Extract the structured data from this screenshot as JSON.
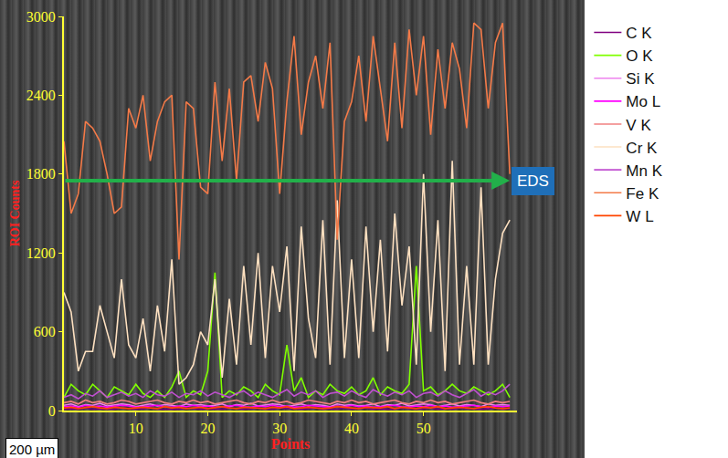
{
  "chart_data": {
    "type": "line",
    "x_label": "Points",
    "y_label": "ROI Counts",
    "x": [
      0,
      1,
      2,
      3,
      4,
      5,
      6,
      7,
      8,
      9,
      10,
      11,
      12,
      13,
      14,
      15,
      16,
      17,
      18,
      19,
      20,
      21,
      22,
      23,
      24,
      25,
      26,
      27,
      28,
      29,
      30,
      31,
      32,
      33,
      34,
      35,
      36,
      37,
      38,
      39,
      40,
      41,
      42,
      43,
      44,
      45,
      46,
      47,
      48,
      49,
      50,
      51,
      52,
      53,
      54,
      55,
      56,
      57,
      58,
      59,
      60,
      61,
      62
    ],
    "xlim": [
      0,
      63
    ],
    "xticks": [
      10,
      20,
      30,
      40,
      50
    ],
    "ylim": [
      0,
      3000
    ],
    "yticks": [
      0,
      600,
      1200,
      1800,
      2400,
      3000
    ],
    "grid": false,
    "legend": "right",
    "series": [
      {
        "name": "C K",
        "color": "#800080",
        "values": [
          10,
          15,
          10,
          20,
          10,
          15,
          10,
          10,
          20,
          15,
          10,
          15,
          20,
          10,
          10,
          15,
          10,
          20,
          15,
          10,
          15,
          10,
          10,
          20,
          15,
          10,
          15,
          20,
          10,
          10,
          20,
          15,
          10,
          10,
          15,
          20,
          10,
          15,
          10,
          20,
          10,
          15,
          20,
          10,
          15,
          10,
          10,
          20,
          15,
          10,
          15,
          20,
          10,
          15,
          10,
          20,
          15,
          10,
          10,
          15,
          20,
          10,
          15
        ]
      },
      {
        "name": "O K",
        "color": "#80ff00",
        "values": [
          100,
          200,
          150,
          120,
          200,
          150,
          100,
          180,
          150,
          120,
          200,
          130,
          100,
          150,
          100,
          180,
          300,
          100,
          150,
          120,
          300,
          1050,
          100,
          150,
          120,
          180,
          150,
          100,
          200,
          150,
          120,
          500,
          150,
          250,
          100,
          150,
          120,
          200,
          150,
          130,
          180,
          120,
          150,
          250,
          120,
          180,
          150,
          130,
          200,
          1100,
          150,
          180,
          120,
          150,
          200,
          150,
          130,
          180,
          150,
          120,
          150,
          200,
          100
        ]
      },
      {
        "name": "Si K",
        "color": "#ee82ee",
        "values": [
          40,
          50,
          30,
          45,
          40,
          55,
          35,
          40,
          50,
          45,
          30,
          40,
          50,
          35,
          45,
          40,
          30,
          50,
          40,
          45,
          35,
          40,
          50,
          30,
          45,
          40,
          55,
          35,
          40,
          50,
          45,
          30,
          40,
          50,
          35,
          45,
          40,
          30,
          50,
          40,
          45,
          35,
          40,
          50,
          30,
          45,
          40,
          55,
          35,
          40,
          50,
          45,
          30,
          40,
          50,
          35,
          45,
          40,
          30,
          50,
          40,
          45,
          40
        ]
      },
      {
        "name": "Mo L",
        "color": "#ff00ff",
        "values": [
          30,
          35,
          25,
          40,
          30,
          35,
          25,
          30,
          40,
          35,
          25,
          30,
          35,
          40,
          30,
          25,
          35,
          30,
          40,
          30,
          35,
          25,
          30,
          35,
          40,
          30,
          25,
          35,
          30,
          40,
          30,
          35,
          25,
          30,
          40,
          35,
          30,
          25,
          35,
          30,
          40,
          30,
          35,
          25,
          30,
          35,
          40,
          30,
          25,
          35,
          30,
          40,
          30,
          35,
          25,
          30,
          35,
          40,
          30,
          25,
          35,
          30,
          35
        ]
      },
      {
        "name": "V K",
        "color": "#f08080",
        "values": [
          60,
          70,
          50,
          80,
          60,
          70,
          50,
          60,
          80,
          70,
          50,
          60,
          70,
          80,
          60,
          50,
          70,
          60,
          80,
          60,
          70,
          50,
          60,
          70,
          80,
          60,
          50,
          70,
          60,
          80,
          60,
          70,
          50,
          60,
          80,
          70,
          60,
          50,
          70,
          60,
          80,
          60,
          70,
          50,
          60,
          70,
          80,
          60,
          50,
          70,
          60,
          80,
          60,
          70,
          50,
          60,
          70,
          80,
          60,
          50,
          70,
          60,
          70
        ]
      },
      {
        "name": "Cr K",
        "color": "#fde0c0",
        "values": [
          900,
          750,
          300,
          450,
          450,
          800,
          600,
          400,
          1000,
          500,
          400,
          700,
          300,
          800,
          450,
          1150,
          200,
          250,
          350,
          600,
          500,
          1000,
          250,
          850,
          350,
          1100,
          500,
          1200,
          400,
          1100,
          750,
          1250,
          300,
          1400,
          700,
          400,
          1450,
          350,
          1600,
          400,
          1150,
          400,
          1400,
          600,
          1300,
          450,
          1500,
          800,
          1250,
          350,
          1800,
          600,
          1450,
          300,
          1900,
          350,
          1100,
          350,
          1700,
          350,
          1000,
          1350,
          1450
        ]
      },
      {
        "name": "Mn K",
        "color": "#c050d0",
        "values": [
          100,
          120,
          90,
          130,
          110,
          150,
          100,
          120,
          140,
          110,
          130,
          100,
          150,
          120,
          110,
          140,
          100,
          130,
          120,
          150,
          110,
          140,
          120,
          100,
          130,
          150,
          110,
          140,
          120,
          100,
          130,
          160,
          110,
          140,
          120,
          150,
          100,
          130,
          140,
          110,
          150,
          120,
          100,
          160,
          130,
          110,
          140,
          120,
          150,
          100,
          130,
          140,
          110,
          150,
          120,
          100,
          130,
          160,
          110,
          140,
          120,
          150,
          200
        ]
      },
      {
        "name": "Fe K",
        "color": "#f47a48",
        "values": [
          2050,
          1500,
          1650,
          2200,
          2150,
          2050,
          1800,
          1500,
          1550,
          2300,
          2150,
          2400,
          1900,
          2200,
          2350,
          2400,
          1150,
          2350,
          2300,
          1700,
          1650,
          2500,
          1900,
          2450,
          1750,
          2500,
          2550,
          2200,
          2650,
          2450,
          1650,
          2350,
          2850,
          2100,
          2500,
          2700,
          2300,
          2800,
          1300,
          2200,
          2350,
          2700,
          2200,
          2850,
          2450,
          2050,
          2800,
          2150,
          2900,
          2400,
          2850,
          2100,
          2750,
          2300,
          2800,
          2600,
          2150,
          2950,
          2900,
          2300,
          2800,
          2950,
          1800
        ]
      },
      {
        "name": "W L",
        "color": "#ff4500",
        "values": [
          20,
          25,
          15,
          20,
          30,
          20,
          15,
          25,
          20,
          15,
          20,
          25,
          20,
          15,
          30,
          20,
          25,
          15,
          20,
          25,
          15,
          20,
          30,
          20,
          15,
          25,
          20,
          20,
          15,
          25,
          20,
          30,
          15,
          20,
          25,
          20,
          15,
          20,
          30,
          25,
          20,
          15,
          25,
          20,
          20,
          30,
          15,
          25,
          20,
          15,
          25,
          20,
          30,
          15,
          20,
          25,
          20,
          15,
          25,
          30,
          20,
          15,
          20
        ]
      }
    ],
    "annotations": [
      {
        "text": "EDS",
        "x": 62,
        "y": 1750
      },
      {
        "text": "200 µm"
      }
    ]
  }
}
